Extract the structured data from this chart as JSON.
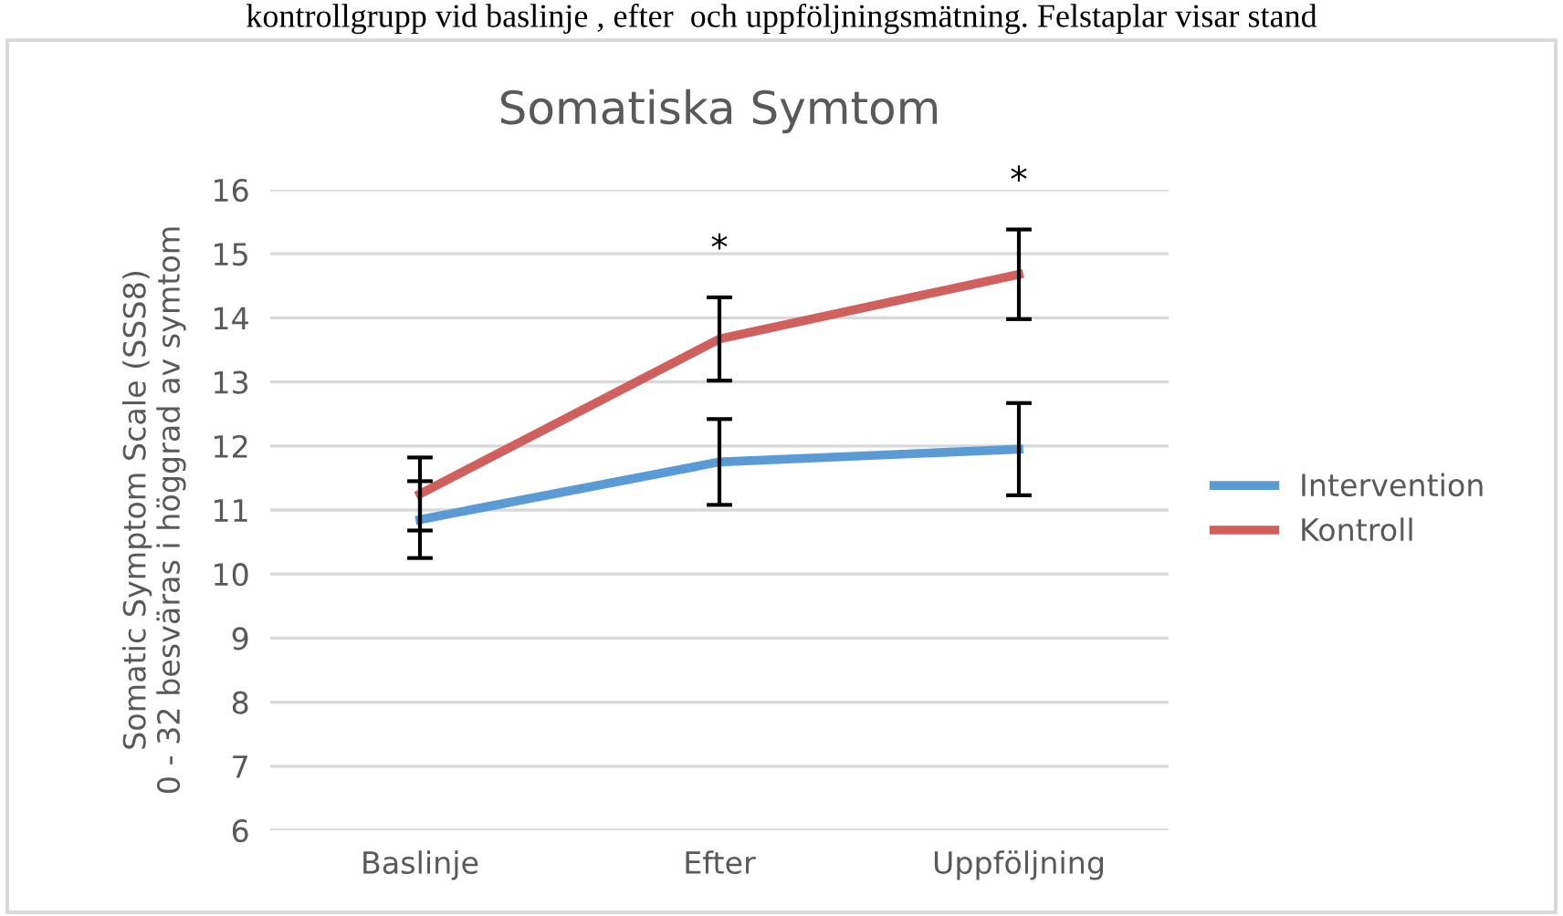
{
  "chart_data": {
    "type": "line",
    "title": "Somatiska Symtom",
    "ylabel": "Somatic Symptom Scale (SSS8)\n0 - 32 besväras i höggrad av symtom",
    "categories": [
      "Baslinje",
      "Efter",
      "Uppföljning"
    ],
    "series": [
      {
        "name": "Intervention",
        "color": "#5b9bd5",
        "values": [
          10.85,
          11.75,
          11.95
        ],
        "errors": [
          0.6,
          0.67,
          0.72
        ]
      },
      {
        "name": "Kontroll",
        "color": "#d0605e",
        "values": [
          11.25,
          13.67,
          14.68
        ],
        "errors": [
          0.57,
          0.65,
          0.7
        ]
      }
    ],
    "annotations": [
      "kontrollgrupp vid baslinje , efter  och uppföljningsmätning. Felstaplar visar stand",
      "*",
      "*"
    ],
    "ylim": [
      6,
      16
    ],
    "yticks": [
      6,
      7,
      8,
      9,
      10,
      11,
      12,
      13,
      14,
      15,
      16
    ],
    "grid": "y",
    "legend": "right",
    "marker": "none",
    "line_style": "solid"
  }
}
